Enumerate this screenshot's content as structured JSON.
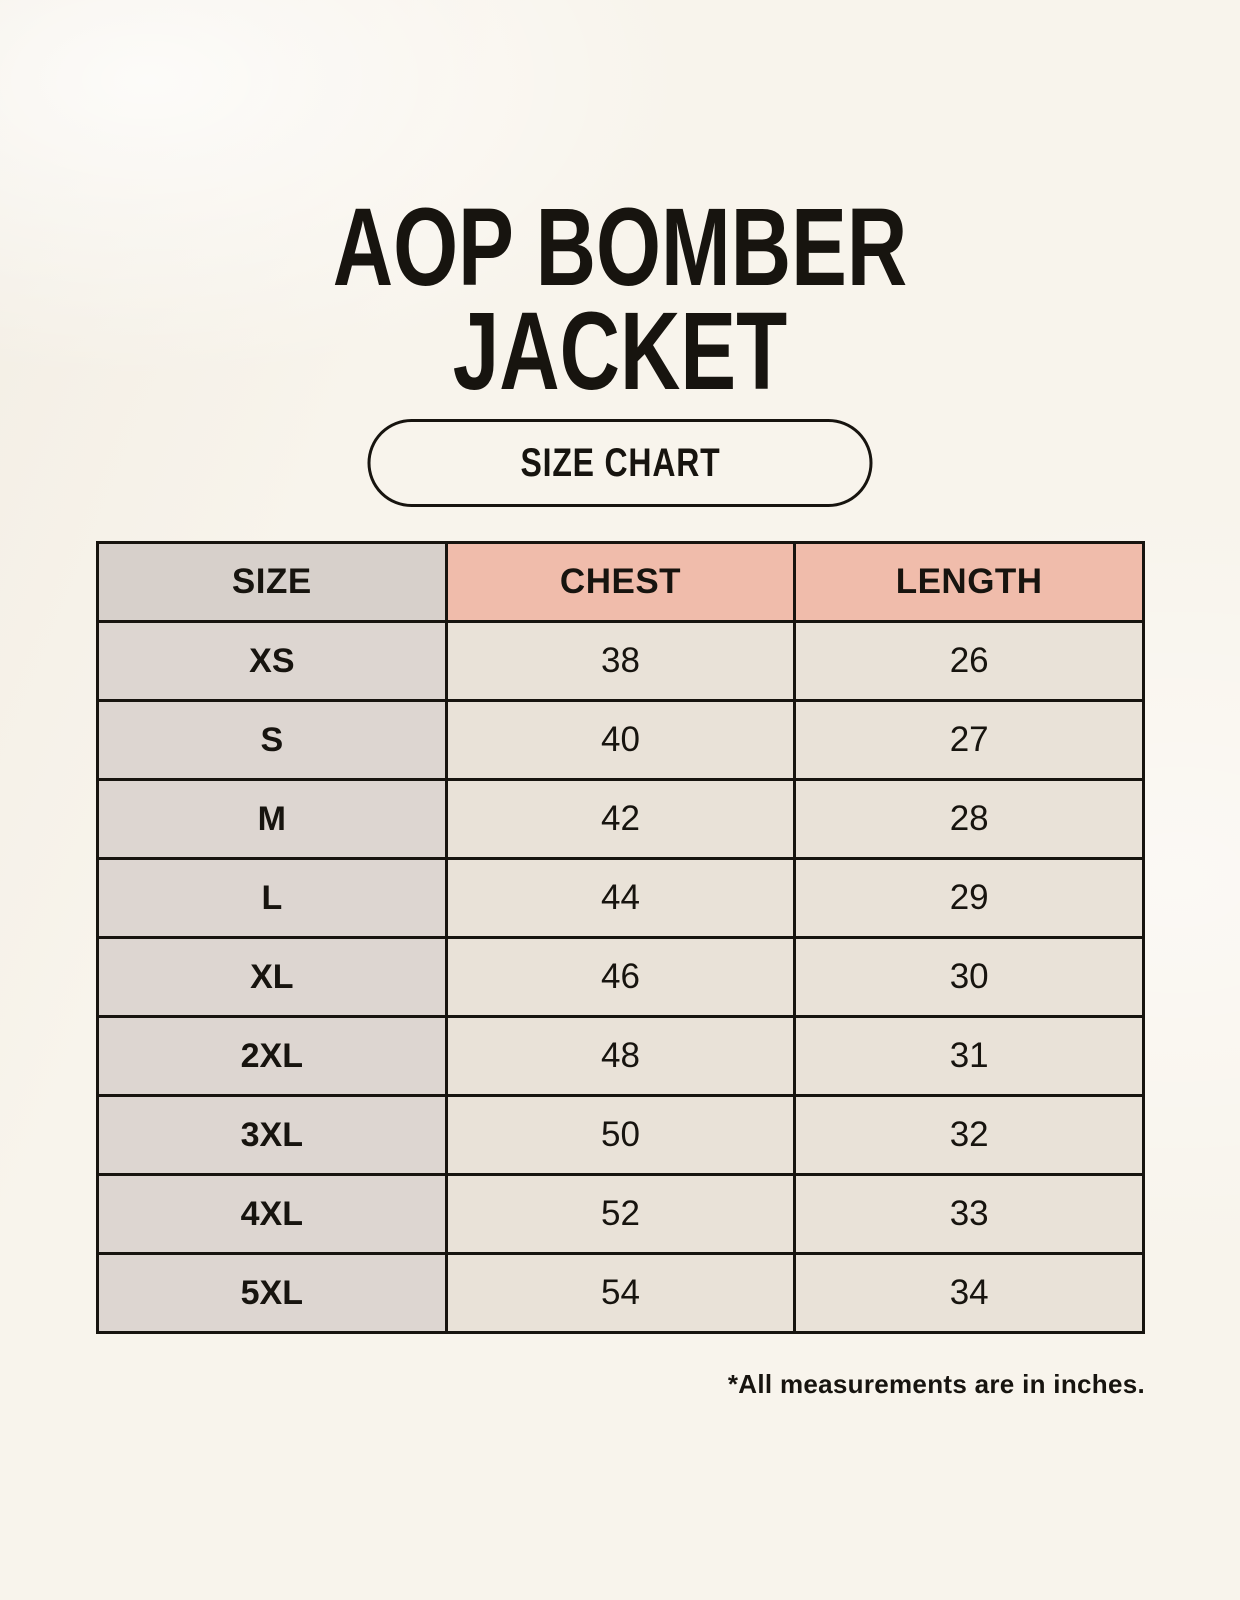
{
  "header": {
    "title_line1": "AOP BOMBER",
    "title_line2": "JACKET",
    "badge_label": "SIZE CHART"
  },
  "footnote": "*All measurements are in inches.",
  "colors": {
    "background": "#f8f4ec",
    "header_size_bg": "#d7d0cb",
    "header_measure_bg": "#f0bcab",
    "size_col_bg": "#ddd6d1",
    "cell_bg": "#e9e2d8",
    "border": "#17140f",
    "text": "#17140f"
  },
  "chart_data": {
    "type": "table",
    "title": "AOP BOMBER JACKET",
    "subtitle": "SIZE CHART",
    "columns": [
      "SIZE",
      "CHEST",
      "LENGTH"
    ],
    "rows": [
      {
        "size": "XS",
        "chest": 38,
        "length": 26
      },
      {
        "size": "S",
        "chest": 40,
        "length": 27
      },
      {
        "size": "M",
        "chest": 42,
        "length": 28
      },
      {
        "size": "L",
        "chest": 44,
        "length": 29
      },
      {
        "size": "XL",
        "chest": 46,
        "length": 30
      },
      {
        "size": "2XL",
        "chest": 48,
        "length": 31
      },
      {
        "size": "3XL",
        "chest": 50,
        "length": 32
      },
      {
        "size": "4XL",
        "chest": 52,
        "length": 33
      },
      {
        "size": "5XL",
        "chest": 54,
        "length": 34
      }
    ],
    "note": "*All measurements are in inches."
  }
}
